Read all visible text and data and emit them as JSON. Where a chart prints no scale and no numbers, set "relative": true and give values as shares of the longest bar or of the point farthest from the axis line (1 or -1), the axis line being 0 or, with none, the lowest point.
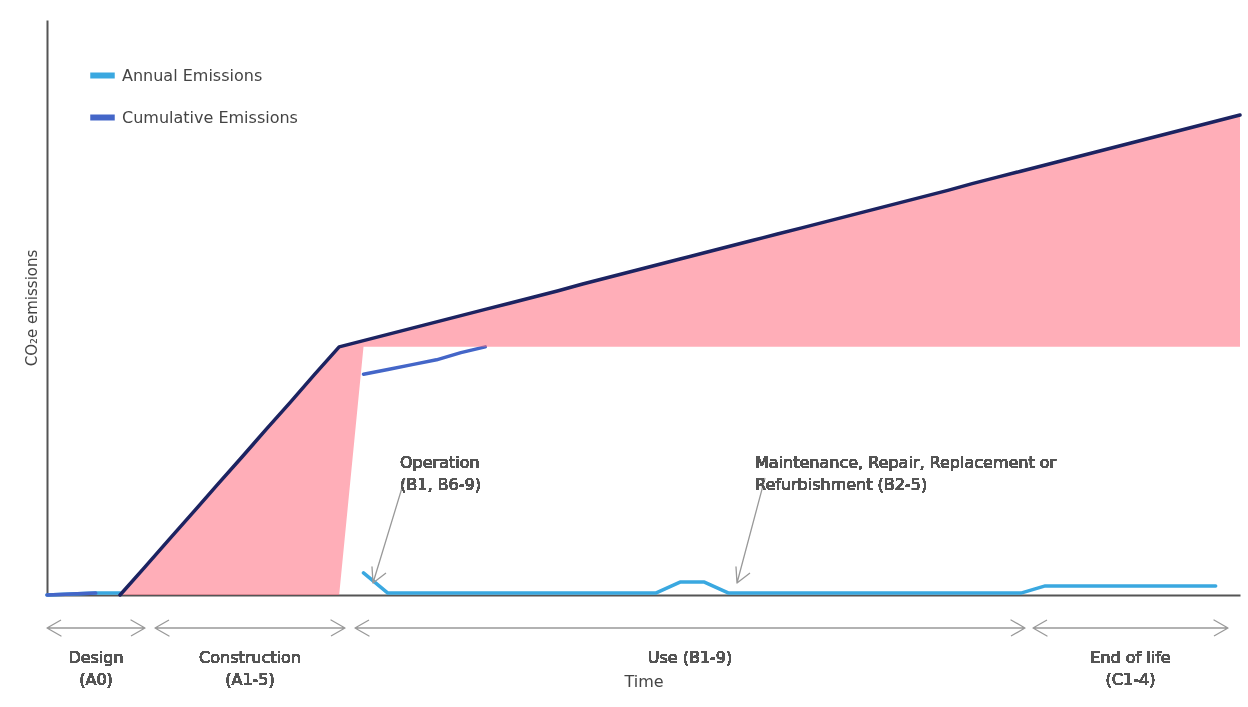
{
  "chart_data": {
    "type": "line",
    "relative": true,
    "xlabel": "Time",
    "ylabel": "CO₂e emissions",
    "legend": "top left",
    "tick_labels": false,
    "grid": false,
    "marker": "none",
    "line_style": "solid",
    "categories": [
      null,
      null,
      null,
      null,
      null,
      null,
      null,
      null,
      null,
      null,
      null,
      null,
      null,
      null,
      null,
      null,
      null,
      null,
      null,
      null,
      null,
      null,
      null,
      null,
      null,
      null,
      null,
      null,
      null,
      null,
      null,
      null,
      null,
      null,
      null,
      null,
      null,
      null,
      null,
      null,
      null,
      null,
      null,
      null,
      null,
      null,
      null,
      null,
      null,
      null
    ],
    "series": [
      {
        "name": "Annual Emissions",
        "color": "#3aa8e0",
        "values": [
          0,
          0.002,
          0.004,
          0.004,
          null,
          null,
          null,
          null,
          null,
          null,
          null,
          null,
          null,
          0.046,
          0.004,
          0.004,
          0.004,
          0.004,
          0.004,
          0.004,
          0.004,
          0.004,
          0.004,
          0.004,
          0.004,
          0.004,
          0.027,
          0.027,
          0.004,
          0.004,
          0.004,
          0.004,
          0.004,
          0.004,
          0.004,
          0.004,
          0.004,
          0.004,
          0.004,
          0.004,
          0.004,
          0.019,
          0.019,
          0.019,
          0.019,
          0.019,
          0.019,
          0.019,
          0.019,
          null
        ]
      },
      {
        "name": "Cumulative Emissions",
        "color": "#4466c8",
        "values": [
          0,
          0.002,
          0.004,
          null,
          null,
          null,
          null,
          null,
          null,
          null,
          null,
          null,
          null,
          0.46,
          0.47,
          0.48,
          0.49,
          0.505,
          0.517,
          null,
          null,
          null,
          null,
          null,
          null,
          null,
          null,
          null,
          null,
          null,
          null,
          null,
          null,
          null,
          null,
          null,
          null,
          null,
          null,
          null,
          null,
          null,
          null,
          null,
          null,
          null,
          null,
          null,
          null,
          null
        ]
      },
      {
        "color": "#1c2361",
        "values": [
          null,
          null,
          null,
          0,
          0.057,
          0.115,
          0.172,
          0.23,
          0.287,
          0.345,
          0.402,
          0.46,
          0.517,
          0.53,
          0.543,
          0.556,
          0.569,
          0.582,
          0.595,
          0.608,
          0.621,
          0.634,
          0.648,
          0.661,
          0.674,
          0.687,
          0.7,
          0.713,
          0.726,
          0.739,
          0.752,
          0.765,
          0.778,
          0.791,
          0.804,
          0.817,
          0.83,
          0.843,
          0.857,
          0.87,
          0.883,
          0.896,
          0.909,
          0.922,
          0.935,
          0.948,
          0.961,
          0.974,
          0.987,
          1.0
        ],
        "lower": [
          null,
          null,
          null,
          0,
          0,
          0,
          0,
          0,
          0,
          0,
          0,
          0,
          0,
          0.517,
          0.517,
          0.517,
          0.517,
          0.517,
          0.517,
          0.517,
          0.517,
          0.517,
          0.517,
          0.517,
          0.517,
          0.517,
          0.517,
          0.517,
          0.517,
          0.517,
          0.517,
          0.517,
          0.517,
          0.517,
          0.517,
          0.517,
          0.517,
          0.517,
          0.517,
          0.517,
          0.517,
          0.517,
          0.517,
          0.517,
          0.517,
          0.517,
          0.517,
          0.517,
          0.517,
          0.517
        ],
        "upper": [
          null,
          null,
          null,
          0,
          0.057,
          0.115,
          0.172,
          0.23,
          0.287,
          0.345,
          0.402,
          0.46,
          0.517,
          0.53,
          0.543,
          0.556,
          0.569,
          0.582,
          0.595,
          0.608,
          0.621,
          0.634,
          0.648,
          0.661,
          0.674,
          0.687,
          0.7,
          0.713,
          0.726,
          0.739,
          0.752,
          0.765,
          0.778,
          0.791,
          0.804,
          0.817,
          0.83,
          0.843,
          0.857,
          0.87,
          0.883,
          0.896,
          0.909,
          0.922,
          0.935,
          0.948,
          0.961,
          0.974,
          0.987,
          1.0
        ]
      }
    ],
    "annotations": [
      "Operation (B1, B6-9)",
      "Maintenance, Repair, Replacement or Refurbishment (B2-5)",
      "Design (A0)",
      "Construction (A1-5)",
      "Use (B1-9)",
      "End of life (C1-4)"
    ]
  }
}
